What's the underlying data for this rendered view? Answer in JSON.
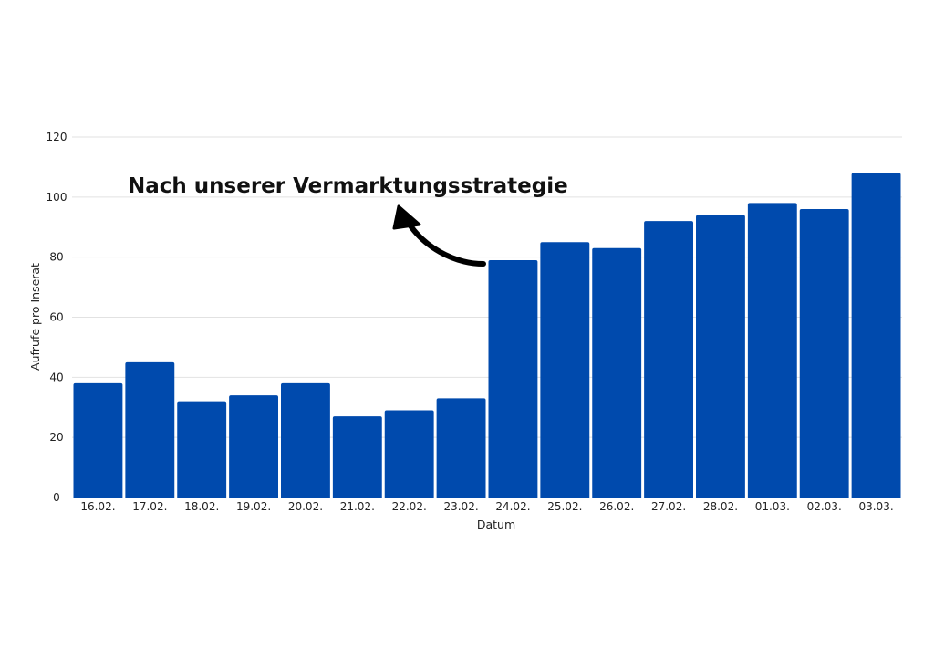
{
  "chart_data": {
    "type": "bar",
    "categories": [
      "16.02.",
      "17.02.",
      "18.02.",
      "19.02.",
      "20.02.",
      "21.02.",
      "22.02.",
      "23.02.",
      "24.02.",
      "25.02.",
      "26.02.",
      "27.02.",
      "28.02.",
      "01.03.",
      "02.03.",
      "03.03."
    ],
    "values": [
      38,
      45,
      32,
      34,
      38,
      27,
      29,
      33,
      79,
      85,
      83,
      92,
      94,
      98,
      96,
      108
    ],
    "xlabel": "Datum",
    "ylabel": "Aufrufe pro Inserat",
    "ylim": [
      0,
      120
    ],
    "yticks": [
      0,
      20,
      40,
      60,
      80,
      100,
      120
    ],
    "grid": true,
    "annotation": "Nach unserer Vermarktungsstrategie",
    "bar_color": "#004AAD",
    "grid_color": "#E2E2E2"
  }
}
